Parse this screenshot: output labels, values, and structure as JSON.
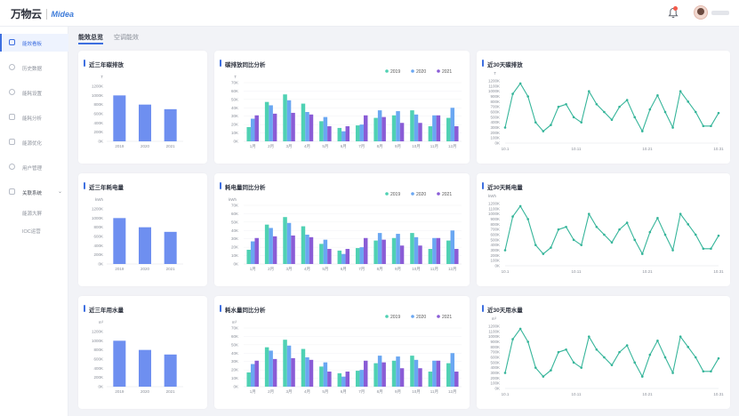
{
  "header": {
    "logo_text": "万物云",
    "logo_tagline": "",
    "brand_text": "Midea",
    "bell_icon": "bell-icon",
    "avatar_icon": "avatar"
  },
  "sidebar": {
    "items": [
      {
        "label": "能效看板",
        "icon": "dashboard-icon",
        "active": true
      },
      {
        "label": "历史数据",
        "icon": "history-icon",
        "active": false
      },
      {
        "label": "能耗设置",
        "icon": "settings-icon",
        "active": false
      },
      {
        "label": "能耗分析",
        "icon": "analysis-icon",
        "active": false
      },
      {
        "label": "能源优化",
        "icon": "optimize-icon",
        "active": false
      },
      {
        "label": "用户管理",
        "icon": "user-icon",
        "active": false
      },
      {
        "label": "关联系统",
        "icon": "link-icon",
        "active": false,
        "expanded": true
      }
    ],
    "sub_items": [
      {
        "label": "能源大屏"
      },
      {
        "label": "IOC运营"
      }
    ]
  },
  "tabs": [
    {
      "label": "能效总览",
      "active": true
    },
    {
      "label": "空调能效",
      "active": false
    }
  ],
  "colors": {
    "accent": "#3e6fe0",
    "bar_blue": "#6e8ff0",
    "series_2019": "#4fd1b3",
    "series_2020": "#6aa7f2",
    "series_2021": "#8a5cd6",
    "line": "#36b59a"
  },
  "chart_data": [
    {
      "id": "carbon-3y",
      "type": "bar",
      "title": "近三年碳排放",
      "ylabel": "T",
      "ylim": [
        0,
        1200
      ],
      "yticks": [
        "0K",
        "200K",
        "400K",
        "600K",
        "800K",
        "1000K",
        "1200K"
      ],
      "categories": [
        "2019",
        "2020",
        "2021"
      ],
      "values": [
        1000,
        800,
        700
      ]
    },
    {
      "id": "carbon-yoy",
      "type": "bar",
      "title": "碳排放同比分析",
      "ylabel": "T",
      "ylim": [
        0,
        70
      ],
      "yticks": [
        "0K",
        "10K",
        "20K",
        "30K",
        "40K",
        "50K",
        "60K",
        "70K"
      ],
      "categories": [
        "1月",
        "2月",
        "3月",
        "4月",
        "5月",
        "6月",
        "7月",
        "8月",
        "9月",
        "10月",
        "11月",
        "12月"
      ],
      "series": [
        {
          "name": "2019",
          "values": [
            17,
            47,
            56,
            45,
            24,
            16,
            19,
            28,
            31,
            37,
            18,
            28
          ]
        },
        {
          "name": "2020",
          "values": [
            27,
            43,
            49,
            35,
            29,
            12,
            20,
            37,
            36,
            32,
            31,
            40
          ]
        },
        {
          "name": "2021",
          "values": [
            31,
            33,
            34,
            32,
            18,
            18,
            31,
            29,
            22,
            22,
            31,
            18
          ]
        }
      ]
    },
    {
      "id": "carbon-30d",
      "type": "line",
      "title": "近30天碳排放",
      "ylabel": "T",
      "ylim": [
        0,
        1200
      ],
      "yticks": [
        "0K",
        "100K",
        "200K",
        "300K",
        "400K",
        "500K",
        "600K",
        "700K",
        "800K",
        "900K",
        "1000K",
        "1100K",
        "1200K"
      ],
      "xticks": [
        "10.1",
        "10.11",
        "10.21",
        "10.31"
      ],
      "values": [
        300,
        950,
        1150,
        900,
        400,
        230,
        350,
        700,
        750,
        500,
        400,
        1000,
        750,
        600,
        450,
        700,
        830,
        500,
        230,
        650,
        920,
        600,
        300,
        1000,
        800,
        600,
        330,
        330,
        580
      ]
    },
    {
      "id": "power-3y",
      "type": "bar",
      "title": "近三年耗电量",
      "ylabel": "kWh",
      "ylim": [
        0,
        1200
      ],
      "yticks": [
        "0K",
        "200K",
        "400K",
        "600K",
        "800K",
        "1000K",
        "1200K"
      ],
      "categories": [
        "2019",
        "2020",
        "2021"
      ],
      "values": [
        1000,
        800,
        700
      ]
    },
    {
      "id": "power-yoy",
      "type": "bar",
      "title": "耗电量同比分析",
      "ylabel": "kWh",
      "ylim": [
        0,
        70
      ],
      "yticks": [
        "0K",
        "10K",
        "20K",
        "30K",
        "40K",
        "50K",
        "60K",
        "70K"
      ],
      "categories": [
        "1月",
        "2月",
        "3月",
        "4月",
        "5月",
        "6月",
        "7月",
        "8月",
        "9月",
        "10月",
        "11月",
        "12月"
      ],
      "series": [
        {
          "name": "2019",
          "values": [
            17,
            47,
            56,
            45,
            24,
            16,
            19,
            28,
            31,
            37,
            18,
            28
          ]
        },
        {
          "name": "2020",
          "values": [
            27,
            43,
            49,
            35,
            29,
            12,
            20,
            37,
            36,
            32,
            31,
            40
          ]
        },
        {
          "name": "2021",
          "values": [
            31,
            33,
            34,
            32,
            18,
            18,
            31,
            29,
            22,
            22,
            31,
            18
          ]
        }
      ]
    },
    {
      "id": "power-30d",
      "type": "line",
      "title": "近30天耗电量",
      "ylabel": "kWh",
      "ylim": [
        0,
        1200
      ],
      "yticks": [
        "0K",
        "100K",
        "200K",
        "300K",
        "400K",
        "500K",
        "600K",
        "700K",
        "800K",
        "900K",
        "1000K",
        "1100K",
        "1200K"
      ],
      "xticks": [
        "10.1",
        "10.11",
        "10.21",
        "10.31"
      ],
      "values": [
        300,
        950,
        1150,
        900,
        400,
        230,
        350,
        700,
        750,
        500,
        400,
        1000,
        750,
        600,
        450,
        700,
        830,
        500,
        230,
        650,
        920,
        600,
        300,
        1000,
        800,
        600,
        330,
        330,
        580
      ]
    },
    {
      "id": "water-3y",
      "type": "bar",
      "title": "近三年用水量",
      "ylabel": "m³",
      "ylim": [
        0,
        1200
      ],
      "yticks": [
        "0K",
        "200K",
        "400K",
        "600K",
        "800K",
        "1000K",
        "1200K"
      ],
      "categories": [
        "2019",
        "2020",
        "2021"
      ],
      "values": [
        1000,
        800,
        700
      ]
    },
    {
      "id": "water-yoy",
      "type": "bar",
      "title": "耗水量同比分析",
      "ylabel": "m³",
      "ylim": [
        0,
        70
      ],
      "yticks": [
        "0K",
        "10K",
        "20K",
        "30K",
        "40K",
        "50K",
        "60K",
        "70K"
      ],
      "categories": [
        "1月",
        "2月",
        "3月",
        "4月",
        "5月",
        "6月",
        "7月",
        "8月",
        "9月",
        "10月",
        "11月",
        "12月"
      ],
      "series": [
        {
          "name": "2019",
          "values": [
            17,
            47,
            56,
            45,
            24,
            16,
            19,
            28,
            31,
            37,
            18,
            28
          ]
        },
        {
          "name": "2020",
          "values": [
            27,
            43,
            49,
            35,
            29,
            12,
            20,
            37,
            36,
            32,
            31,
            40
          ]
        },
        {
          "name": "2021",
          "values": [
            31,
            33,
            34,
            32,
            18,
            18,
            31,
            29,
            22,
            22,
            31,
            18
          ]
        }
      ]
    },
    {
      "id": "water-30d",
      "type": "line",
      "title": "近30天用水量",
      "ylabel": "m³",
      "ylim": [
        0,
        1200
      ],
      "yticks": [
        "0K",
        "100K",
        "200K",
        "300K",
        "400K",
        "500K",
        "600K",
        "700K",
        "800K",
        "900K",
        "1000K",
        "1100K",
        "1200K"
      ],
      "xticks": [
        "10.1",
        "10.11",
        "10.21",
        "10.31"
      ],
      "values": [
        300,
        950,
        1150,
        900,
        400,
        230,
        350,
        700,
        750,
        500,
        400,
        1000,
        750,
        600,
        450,
        700,
        830,
        500,
        230,
        650,
        920,
        600,
        300,
        1000,
        800,
        600,
        330,
        330,
        580
      ]
    }
  ]
}
